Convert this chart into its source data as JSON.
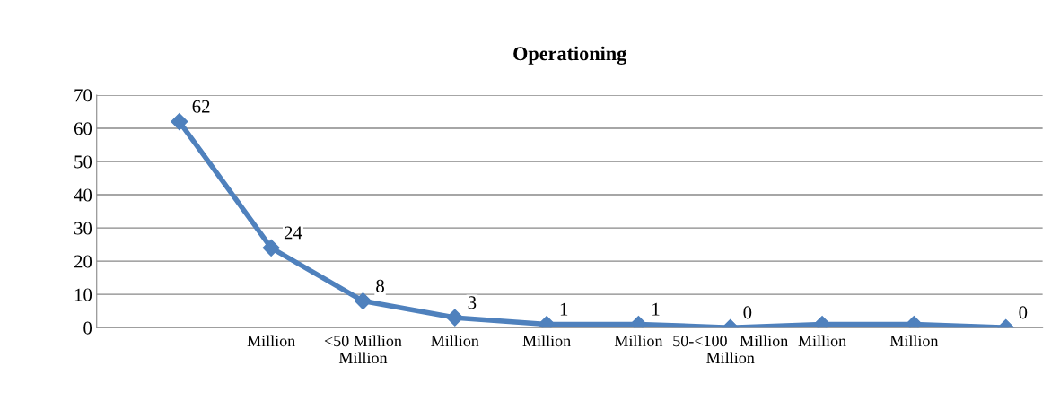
{
  "chart_data": {
    "type": "line",
    "title": "Operationing",
    "categories": [
      null,
      "Million",
      "<50 Million\nMillion",
      "Million",
      "Million",
      "Million",
      "50-<100   Million\nMillion",
      "Million",
      "Million",
      null
    ],
    "series": [
      {
        "color": "#4f81bd",
        "values": [
          62,
          24,
          8,
          3,
          1,
          1,
          0,
          1,
          1,
          0
        ],
        "value_labels": [
          "62",
          "24",
          "8",
          "3",
          "1",
          "1",
          "0",
          null,
          null,
          "0"
        ]
      }
    ],
    "ylim": [
      0,
      70
    ],
    "yticks": [
      0,
      10,
      20,
      30,
      40,
      50,
      60,
      70
    ],
    "grid": "y",
    "marker": "diamond",
    "line_style": "solid",
    "legend": false
  }
}
